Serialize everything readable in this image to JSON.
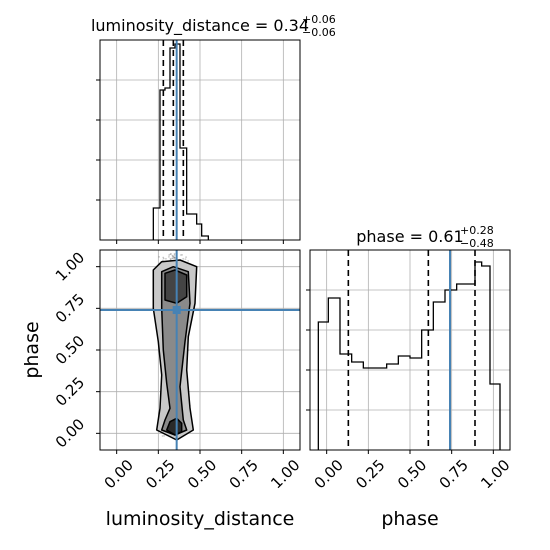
{
  "chart_data": [
    {
      "type": "histogram",
      "panel": "luminosity_distance marginal",
      "title": {
        "main": "luminosity_distance = 0.34",
        "sup": "+0.06",
        "sub": "−0.06"
      },
      "x_range": [
        -0.1,
        1.1
      ],
      "y_range": [
        0,
        1.0
      ],
      "bins": [
        {
          "x0": 0.22,
          "x1": 0.26,
          "value": 0.16
        },
        {
          "x0": 0.26,
          "x1": 0.29,
          "value": 0.75
        },
        {
          "x0": 0.29,
          "x1": 0.32,
          "value": 0.76
        },
        {
          "x0": 0.32,
          "x1": 0.35,
          "value": 0.96
        },
        {
          "x0": 0.35,
          "x1": 0.38,
          "value": 0.98
        },
        {
          "x0": 0.38,
          "x1": 0.42,
          "value": 0.46
        },
        {
          "x0": 0.42,
          "x1": 0.45,
          "value": 0.13
        },
        {
          "x0": 0.45,
          "x1": 0.48,
          "value": 0.13
        },
        {
          "x0": 0.48,
          "x1": 0.51,
          "value": 0.08
        },
        {
          "x0": 0.51,
          "x1": 0.55,
          "value": 0.02
        }
      ],
      "quantiles": [
        0.28,
        0.34,
        0.4
      ],
      "truth": 0.36,
      "x_ticks": [
        0.0,
        0.25,
        0.5,
        0.75,
        1.0
      ],
      "grid": true,
      "colors": {
        "line": "#000000",
        "truth": "#4682b4",
        "grid": "#b0b0b0"
      }
    },
    {
      "type": "2d-density",
      "panel": "luminosity_distance vs phase",
      "xlabel": "luminosity_distance",
      "ylabel": "phase",
      "x_range": [
        -0.1,
        1.1
      ],
      "y_range": [
        -0.1,
        1.1
      ],
      "x_ticks": [
        0.0,
        0.25,
        0.5,
        0.75,
        1.0
      ],
      "x_tick_labels": [
        "0.00",
        "0.25",
        "0.50",
        "0.75",
        "1.00"
      ],
      "y_ticks": [
        0.0,
        0.25,
        0.5,
        0.75,
        1.0
      ],
      "y_tick_labels": [
        "0.00",
        "0.25",
        "0.50",
        "0.75",
        "1.00"
      ],
      "truth": {
        "x": 0.36,
        "y": 0.74
      },
      "contour_levels": [
        {
          "fill": "#c8c8c8",
          "points": [
            [
              0.24,
              0.02
            ],
            [
              0.26,
              0.15
            ],
            [
              0.27,
              0.35
            ],
            [
              0.25,
              0.55
            ],
            [
              0.22,
              0.75
            ],
            [
              0.22,
              0.98
            ],
            [
              0.27,
              1.03
            ],
            [
              0.38,
              1.04
            ],
            [
              0.48,
              1.0
            ],
            [
              0.47,
              0.78
            ],
            [
              0.43,
              0.58
            ],
            [
              0.42,
              0.38
            ],
            [
              0.44,
              0.15
            ],
            [
              0.46,
              0.02
            ],
            [
              0.36,
              -0.04
            ]
          ]
        },
        {
          "fill": "#8a8a8a",
          "points": [
            [
              0.27,
              0.02
            ],
            [
              0.29,
              0.08
            ],
            [
              0.32,
              0.15
            ],
            [
              0.3,
              0.3
            ],
            [
              0.28,
              0.5
            ],
            [
              0.27,
              0.75
            ],
            [
              0.27,
              0.97
            ],
            [
              0.34,
              1.0
            ],
            [
              0.43,
              0.97
            ],
            [
              0.44,
              0.78
            ],
            [
              0.41,
              0.55
            ],
            [
              0.38,
              0.28
            ],
            [
              0.4,
              0.08
            ],
            [
              0.42,
              0.02
            ],
            [
              0.35,
              -0.01
            ]
          ]
        },
        {
          "fill": "#444444",
          "points": [
            [
              0.29,
              0.8
            ],
            [
              0.29,
              0.96
            ],
            [
              0.35,
              0.98
            ],
            [
              0.42,
              0.95
            ],
            [
              0.42,
              0.82
            ],
            [
              0.36,
              0.78
            ]
          ]
        },
        {
          "fill": "#2a2a2a",
          "points": [
            [
              0.3,
              0.02
            ],
            [
              0.32,
              0.07
            ],
            [
              0.36,
              0.09
            ],
            [
              0.39,
              0.06
            ],
            [
              0.39,
              0.01
            ],
            [
              0.35,
              -0.01
            ]
          ]
        }
      ],
      "colors": {
        "scatter": "#000000",
        "truth": "#4682b4",
        "grid": "#b0b0b0"
      }
    },
    {
      "type": "histogram",
      "panel": "phase marginal",
      "title": {
        "main": "phase = 0.61",
        "sup": "+0.28",
        "sub": "−0.48"
      },
      "xlabel": "phase",
      "x_range": [
        -0.1,
        1.1
      ],
      "y_range": [
        0,
        1.0
      ],
      "bins": [
        {
          "x0": -0.05,
          "x1": 0.01,
          "value": 0.64
        },
        {
          "x0": 0.01,
          "x1": 0.08,
          "value": 0.76
        },
        {
          "x0": 0.08,
          "x1": 0.15,
          "value": 0.48
        },
        {
          "x0": 0.15,
          "x1": 0.22,
          "value": 0.44
        },
        {
          "x0": 0.22,
          "x1": 0.29,
          "value": 0.41
        },
        {
          "x0": 0.29,
          "x1": 0.36,
          "value": 0.41
        },
        {
          "x0": 0.36,
          "x1": 0.43,
          "value": 0.43
        },
        {
          "x0": 0.43,
          "x1": 0.5,
          "value": 0.47
        },
        {
          "x0": 0.5,
          "x1": 0.57,
          "value": 0.46
        },
        {
          "x0": 0.57,
          "x1": 0.64,
          "value": 0.6
        },
        {
          "x0": 0.64,
          "x1": 0.71,
          "value": 0.74
        },
        {
          "x0": 0.71,
          "x1": 0.78,
          "value": 0.8
        },
        {
          "x0": 0.78,
          "x1": 0.85,
          "value": 0.83
        },
        {
          "x0": 0.85,
          "x1": 0.89,
          "value": 0.83
        },
        {
          "x0": 0.89,
          "x1": 0.93,
          "value": 0.94
        },
        {
          "x0": 0.93,
          "x1": 0.98,
          "value": 0.92
        },
        {
          "x0": 0.98,
          "x1": 1.04,
          "value": 0.33
        }
      ],
      "quantiles": [
        0.13,
        0.61,
        0.89
      ],
      "truth": 0.74,
      "x_ticks": [
        0.0,
        0.25,
        0.5,
        0.75,
        1.0
      ],
      "x_tick_labels": [
        "0.00",
        "0.25",
        "0.50",
        "0.75",
        "1.00"
      ],
      "grid": true,
      "colors": {
        "line": "#000000",
        "truth": "#4682b4",
        "grid": "#b0b0b0"
      }
    }
  ]
}
